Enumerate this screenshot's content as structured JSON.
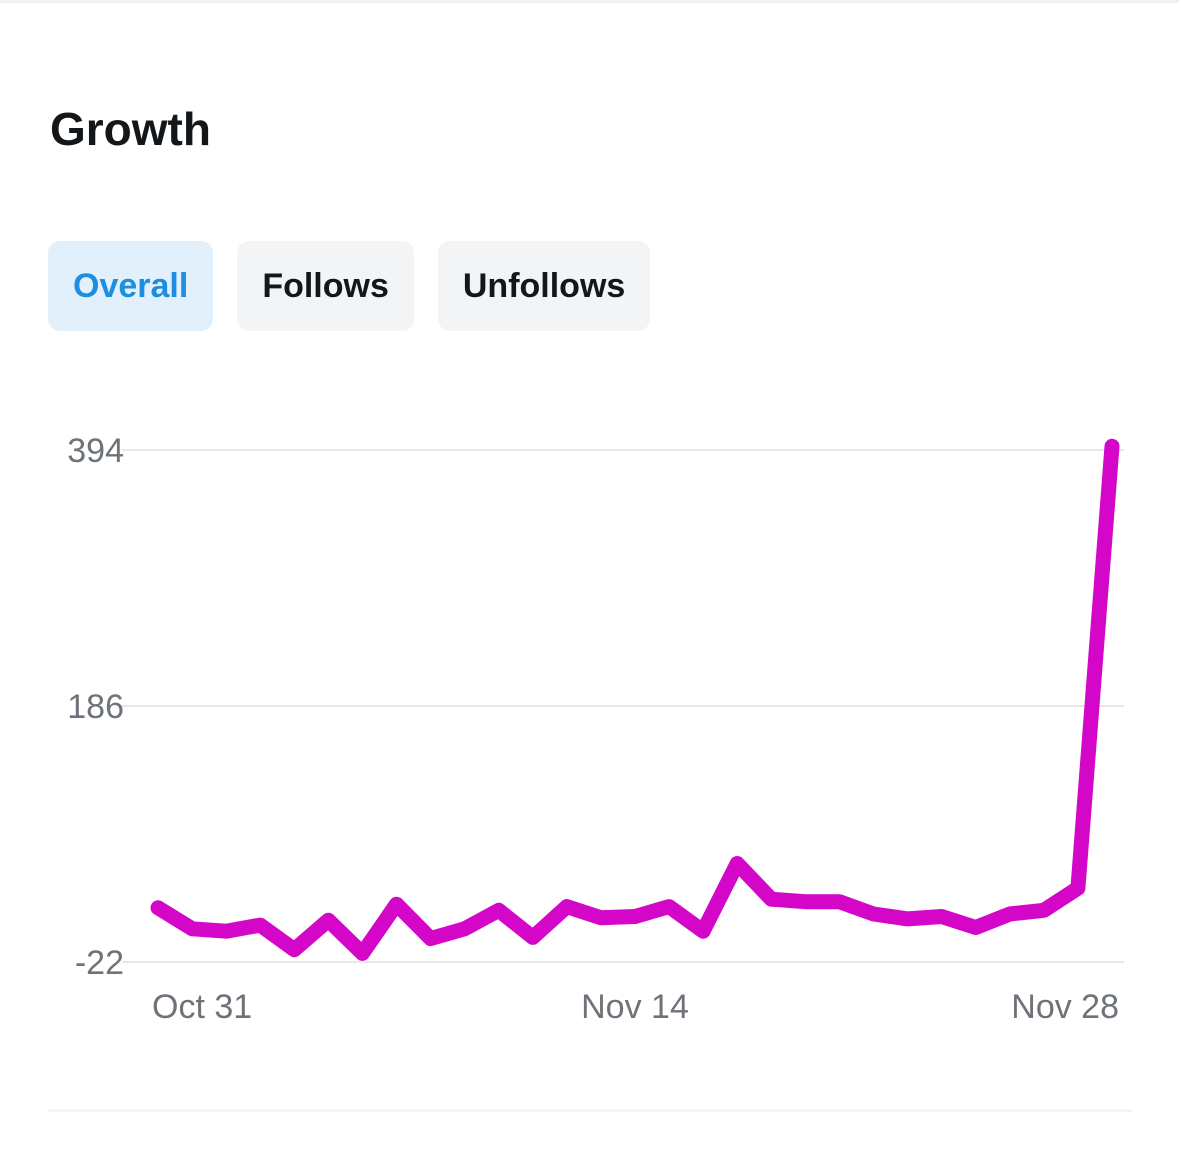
{
  "header": {
    "title": "Growth"
  },
  "tabs": [
    {
      "label": "Overall",
      "active": true
    },
    {
      "label": "Follows",
      "active": false
    },
    {
      "label": "Unfollows",
      "active": false
    }
  ],
  "colors": {
    "accent": "#1d8ee0",
    "series_line": "#d406c8",
    "active_tab_bg": "#e1f0fb",
    "tab_bg": "#f3f4f6",
    "gridline": "#e6e7ea"
  },
  "chart_data": {
    "type": "line",
    "title": "",
    "xlabel": "",
    "ylabel": "",
    "x": [
      "2023-10-31",
      "2023-11-01",
      "2023-11-02",
      "2023-11-03",
      "2023-11-04",
      "2023-11-05",
      "2023-11-06",
      "2023-11-07",
      "2023-11-08",
      "2023-11-09",
      "2023-11-10",
      "2023-11-11",
      "2023-11-12",
      "2023-11-13",
      "2023-11-14",
      "2023-11-15",
      "2023-11-16",
      "2023-11-17",
      "2023-11-18",
      "2023-11-19",
      "2023-11-20",
      "2023-11-21",
      "2023-11-22",
      "2023-11-23",
      "2023-11-24",
      "2023-11-25",
      "2023-11-26",
      "2023-11-27",
      "2023-11-28"
    ],
    "series": [
      {
        "values": [
          22,
          5,
          3,
          8,
          -12,
          12,
          -15,
          25,
          -3,
          5,
          20,
          -2,
          23,
          14,
          15,
          23,
          3,
          58,
          29,
          27,
          27,
          17,
          13,
          15,
          6,
          17,
          20,
          38,
          397
        ]
      }
    ],
    "y_ticks": [
      "394",
      "186",
      "-22"
    ],
    "ylim": [
      -22,
      394
    ],
    "x_ticks": [
      "Oct 31",
      "Nov 14",
      "Nov 28"
    ],
    "grid": "horizontal",
    "legend": "none"
  }
}
